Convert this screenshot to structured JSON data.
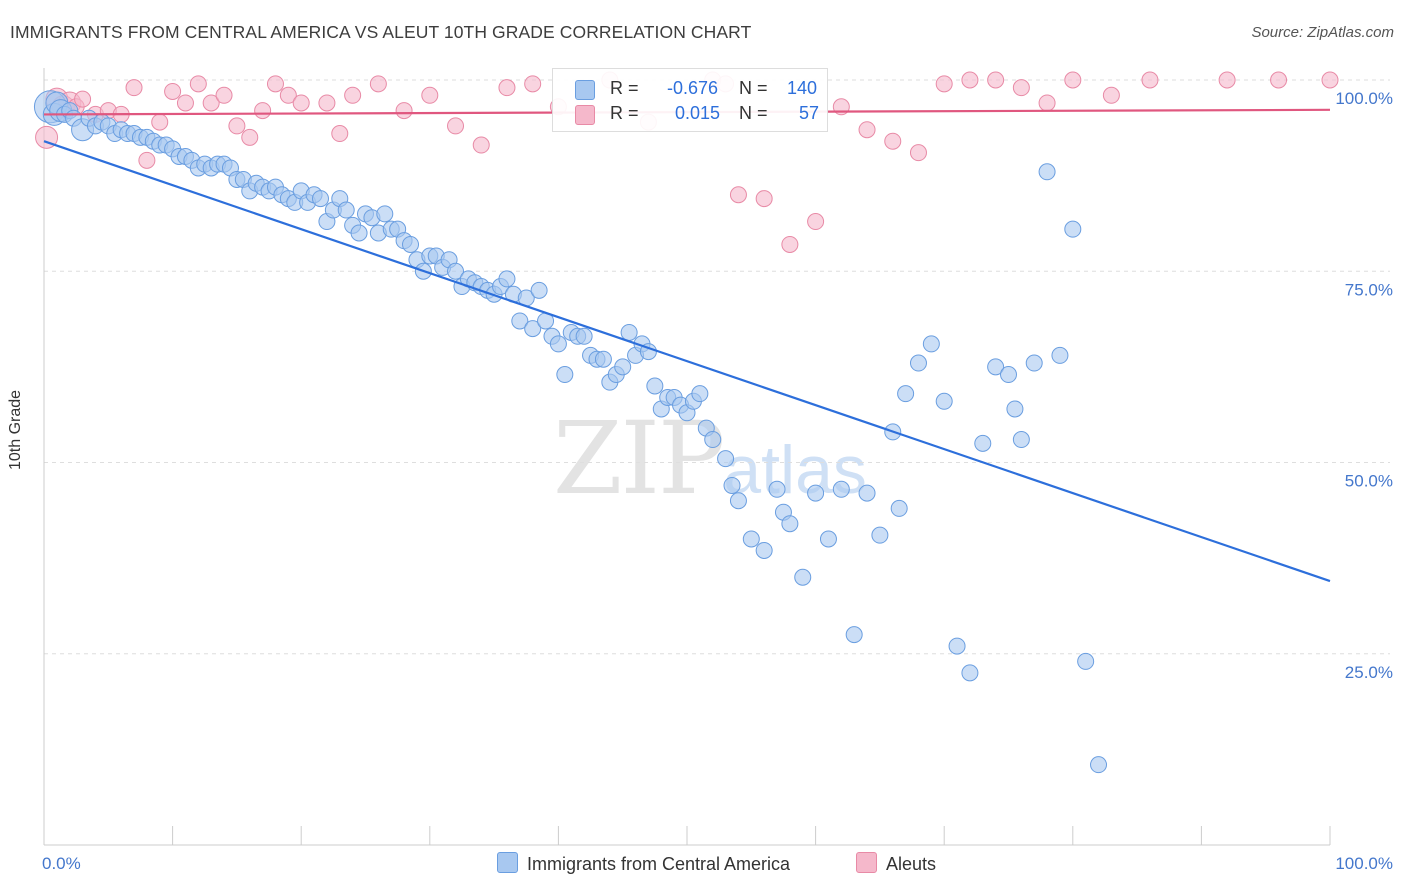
{
  "header": {
    "title": "IMMIGRANTS FROM CENTRAL AMERICA VS ALEUT 10TH GRADE CORRELATION CHART",
    "source": "Source: ZipAtlas.com"
  },
  "legend": {
    "rows": [
      {
        "r_label": "R =",
        "r_value": "-0.676",
        "n_label": "N =",
        "n_value": "140",
        "color": "#a8c8f0"
      },
      {
        "r_label": "R =",
        "r_value": "0.015",
        "n_label": "N =",
        "n_value": "57",
        "color": "#f5b8cb"
      }
    ]
  },
  "bottom_legend": {
    "items": [
      {
        "label": "Immigrants from Central America",
        "color": "#a8c8f0"
      },
      {
        "label": "Aleuts",
        "color": "#f5b8cb"
      }
    ]
  },
  "watermark": {
    "zip": "ZIP",
    "atlas": "atlas"
  },
  "colors": {
    "blue_fill": "#a8c8f0",
    "blue_stroke": "#6a9ee0",
    "blue_line": "#2d6fdb",
    "pink_fill": "#f5b8cb",
    "pink_stroke": "#e88aa6",
    "pink_line": "#e0577f",
    "grid": "#dedede",
    "axis_tick_text": "#4477cc"
  },
  "chart_data": {
    "type": "scatter",
    "title": "IMMIGRANTS FROM CENTRAL AMERICA VS ALEUT 10TH GRADE CORRELATION CHART",
    "xlabel": "",
    "ylabel": "10th Grade",
    "xlim": [
      0,
      100
    ],
    "ylim": [
      0,
      100
    ],
    "x_ticks": [
      "0.0%",
      "100.0%"
    ],
    "y_ticks": [
      "100.0%",
      "75.0%",
      "50.0%",
      "25.0%"
    ],
    "y_tick_values": [
      100,
      75,
      50,
      25
    ],
    "grid": true,
    "legend_position": "top-center",
    "series": [
      {
        "name": "Immigrants from Central America",
        "color": "#a8c8f0",
        "trend": {
          "x": [
            0,
            100
          ],
          "y": [
            92.0,
            34.5
          ]
        },
        "points": [
          [
            0.5,
            96.5,
            3
          ],
          [
            0.8,
            95.5,
            2
          ],
          [
            1.0,
            97.0,
            2
          ],
          [
            1.3,
            96.0,
            2
          ],
          [
            1.6,
            95.5,
            1
          ],
          [
            2.0,
            96.0,
            1
          ],
          [
            2.3,
            95.0,
            1
          ],
          [
            3.0,
            93.5,
            2
          ],
          [
            3.5,
            95.0,
            1
          ],
          [
            4.0,
            94.0,
            1
          ],
          [
            4.5,
            94.5,
            1
          ],
          [
            5.0,
            94.0,
            1
          ],
          [
            5.5,
            93.0,
            1
          ],
          [
            6.0,
            93.5,
            1
          ],
          [
            6.5,
            93.0,
            1
          ],
          [
            7.0,
            93.0,
            1
          ],
          [
            7.5,
            92.5,
            1
          ],
          [
            8.0,
            92.5,
            1
          ],
          [
            8.5,
            92.0,
            1
          ],
          [
            9.0,
            91.5,
            1
          ],
          [
            9.5,
            91.5,
            1
          ],
          [
            10.0,
            91.0,
            1
          ],
          [
            10.5,
            90.0,
            1
          ],
          [
            11.0,
            90.0,
            1
          ],
          [
            11.5,
            89.5,
            1
          ],
          [
            12.0,
            88.5,
            1
          ],
          [
            12.5,
            89.0,
            1
          ],
          [
            13.0,
            88.5,
            1
          ],
          [
            13.5,
            89.0,
            1
          ],
          [
            14.0,
            89.0,
            1
          ],
          [
            14.5,
            88.5,
            1
          ],
          [
            15.0,
            87.0,
            1
          ],
          [
            15.5,
            87.0,
            1
          ],
          [
            16.0,
            85.5,
            1
          ],
          [
            16.5,
            86.5,
            1
          ],
          [
            17.0,
            86.0,
            1
          ],
          [
            17.5,
            85.5,
            1
          ],
          [
            18.0,
            86.0,
            1
          ],
          [
            18.5,
            85.0,
            1
          ],
          [
            19.0,
            84.5,
            1
          ],
          [
            19.5,
            84.0,
            1
          ],
          [
            20.0,
            85.5,
            1
          ],
          [
            20.5,
            84.0,
            1
          ],
          [
            21.0,
            85.0,
            1
          ],
          [
            21.5,
            84.5,
            1
          ],
          [
            22.0,
            81.5,
            1
          ],
          [
            22.5,
            83.0,
            1
          ],
          [
            23.0,
            84.5,
            1
          ],
          [
            23.5,
            83.0,
            1
          ],
          [
            24.0,
            81.0,
            1
          ],
          [
            24.5,
            80.0,
            1
          ],
          [
            25.0,
            82.5,
            1
          ],
          [
            25.5,
            82.0,
            1
          ],
          [
            26.0,
            80.0,
            1
          ],
          [
            26.5,
            82.5,
            1
          ],
          [
            27.0,
            80.5,
            1
          ],
          [
            27.5,
            80.5,
            1
          ],
          [
            28.0,
            79.0,
            1
          ],
          [
            28.5,
            78.5,
            1
          ],
          [
            29.0,
            76.5,
            1
          ],
          [
            29.5,
            75.0,
            1
          ],
          [
            30.0,
            77.0,
            1
          ],
          [
            30.5,
            77.0,
            1
          ],
          [
            31.0,
            75.5,
            1
          ],
          [
            31.5,
            76.5,
            1
          ],
          [
            32.0,
            75.0,
            1
          ],
          [
            32.5,
            73.0,
            1
          ],
          [
            33.0,
            74.0,
            1
          ],
          [
            33.5,
            73.5,
            1
          ],
          [
            34.0,
            73.0,
            1
          ],
          [
            34.5,
            72.5,
            1
          ],
          [
            35.0,
            72.0,
            1
          ],
          [
            35.5,
            73.0,
            1
          ],
          [
            36.0,
            74.0,
            1
          ],
          [
            36.5,
            72.0,
            1
          ],
          [
            37.0,
            68.5,
            1
          ],
          [
            37.5,
            71.5,
            1
          ],
          [
            38.0,
            67.5,
            1
          ],
          [
            38.5,
            72.5,
            1
          ],
          [
            39.0,
            68.5,
            1
          ],
          [
            39.5,
            66.5,
            1
          ],
          [
            40.0,
            65.5,
            1
          ],
          [
            40.5,
            61.5,
            1
          ],
          [
            41.0,
            67.0,
            1
          ],
          [
            41.5,
            66.5,
            1
          ],
          [
            42.0,
            66.5,
            1
          ],
          [
            42.5,
            64.0,
            1
          ],
          [
            43.0,
            63.5,
            1
          ],
          [
            43.5,
            63.5,
            1
          ],
          [
            44.0,
            60.5,
            1
          ],
          [
            44.5,
            61.5,
            1
          ],
          [
            45.0,
            62.5,
            1
          ],
          [
            45.5,
            67.0,
            1
          ],
          [
            46.0,
            64.0,
            1
          ],
          [
            46.5,
            65.5,
            1
          ],
          [
            47.0,
            64.5,
            1
          ],
          [
            47.5,
            60.0,
            1
          ],
          [
            48.0,
            57.0,
            1
          ],
          [
            48.5,
            58.5,
            1
          ],
          [
            49.0,
            58.5,
            1
          ],
          [
            49.5,
            57.5,
            1
          ],
          [
            50.0,
            56.5,
            1
          ],
          [
            50.5,
            58.0,
            1
          ],
          [
            51.0,
            59.0,
            1
          ],
          [
            51.5,
            54.5,
            1
          ],
          [
            52.0,
            53.0,
            1
          ],
          [
            53.0,
            50.5,
            1
          ],
          [
            53.5,
            47.0,
            1
          ],
          [
            54.0,
            45.0,
            1
          ],
          [
            55.0,
            40.0,
            1
          ],
          [
            56.0,
            38.5,
            1
          ],
          [
            57.0,
            46.5,
            1
          ],
          [
            57.5,
            43.5,
            1
          ],
          [
            58.0,
            42.0,
            1
          ],
          [
            59.0,
            35.0,
            1
          ],
          [
            60.0,
            46.0,
            1
          ],
          [
            61.0,
            40.0,
            1
          ],
          [
            62.0,
            46.5,
            1
          ],
          [
            63.0,
            27.5,
            1
          ],
          [
            64.0,
            46.0,
            1
          ],
          [
            65.0,
            40.5,
            1
          ],
          [
            66.0,
            54.0,
            1
          ],
          [
            66.5,
            44.0,
            1
          ],
          [
            67.0,
            59.0,
            1
          ],
          [
            68.0,
            63.0,
            1
          ],
          [
            69.0,
            65.5,
            1
          ],
          [
            70.0,
            58.0,
            1
          ],
          [
            71.0,
            26.0,
            1
          ],
          [
            72.0,
            22.5,
            1
          ],
          [
            73.0,
            52.5,
            1
          ],
          [
            74.0,
            62.5,
            1
          ],
          [
            75.0,
            61.5,
            1
          ],
          [
            75.5,
            57.0,
            1
          ],
          [
            76.0,
            53.0,
            1
          ],
          [
            77.0,
            63.0,
            1
          ],
          [
            78.0,
            88.0,
            1
          ],
          [
            79.0,
            64.0,
            1
          ],
          [
            80.0,
            80.5,
            1
          ],
          [
            81.0,
            24.0,
            1
          ],
          [
            82.0,
            10.5,
            1
          ]
        ]
      },
      {
        "name": "Aleuts",
        "color": "#f5b8cb",
        "trend": {
          "x": [
            0,
            100
          ],
          "y": [
            95.5,
            96.1
          ]
        },
        "points": [
          [
            0.2,
            92.5,
            2
          ],
          [
            1.0,
            97.5,
            2
          ],
          [
            1.5,
            96.5,
            2
          ],
          [
            2.0,
            97.0,
            2
          ],
          [
            2.5,
            96.5,
            1
          ],
          [
            3.0,
            97.5,
            1
          ],
          [
            4.0,
            95.5,
            1
          ],
          [
            5.0,
            96.0,
            1
          ],
          [
            6.0,
            95.5,
            1
          ],
          [
            7.0,
            99.0,
            1
          ],
          [
            8.0,
            89.5,
            1
          ],
          [
            9.0,
            94.5,
            1
          ],
          [
            10.0,
            98.5,
            1
          ],
          [
            11.0,
            97.0,
            1
          ],
          [
            12.0,
            99.5,
            1
          ],
          [
            13.0,
            97.0,
            1
          ],
          [
            14.0,
            98.0,
            1
          ],
          [
            15.0,
            94.0,
            1
          ],
          [
            16.0,
            92.5,
            1
          ],
          [
            17.0,
            96.0,
            1
          ],
          [
            18.0,
            99.5,
            1
          ],
          [
            19.0,
            98.0,
            1
          ],
          [
            20.0,
            97.0,
            1
          ],
          [
            22.0,
            97.0,
            1
          ],
          [
            23.0,
            93.0,
            1
          ],
          [
            24.0,
            98.0,
            1
          ],
          [
            26.0,
            99.5,
            1
          ],
          [
            28.0,
            96.0,
            1
          ],
          [
            30.0,
            98.0,
            1
          ],
          [
            32.0,
            94.0,
            1
          ],
          [
            34.0,
            91.5,
            1
          ],
          [
            36.0,
            99.0,
            1
          ],
          [
            38.0,
            99.5,
            1
          ],
          [
            40.0,
            96.5,
            1
          ],
          [
            44.0,
            100.0,
            1
          ],
          [
            47.0,
            94.5,
            1
          ],
          [
            52.0,
            100.0,
            1
          ],
          [
            53.0,
            99.5,
            1
          ],
          [
            54.0,
            85.0,
            1
          ],
          [
            56.0,
            84.5,
            1
          ],
          [
            58.0,
            78.5,
            1
          ],
          [
            60.0,
            81.5,
            1
          ],
          [
            62.0,
            96.5,
            1
          ],
          [
            64.0,
            93.5,
            1
          ],
          [
            66.0,
            92.0,
            1
          ],
          [
            68.0,
            90.5,
            1
          ],
          [
            70.0,
            99.5,
            1
          ],
          [
            72.0,
            100.0,
            1
          ],
          [
            74.0,
            100.0,
            1
          ],
          [
            76.0,
            99.0,
            1
          ],
          [
            78.0,
            97.0,
            1
          ],
          [
            80.0,
            100.0,
            1
          ],
          [
            83.0,
            98.0,
            1
          ],
          [
            86.0,
            100.0,
            1
          ],
          [
            92.0,
            100.0,
            1
          ],
          [
            96.0,
            100.0,
            1
          ],
          [
            100.0,
            100.0,
            1
          ]
        ]
      }
    ]
  }
}
